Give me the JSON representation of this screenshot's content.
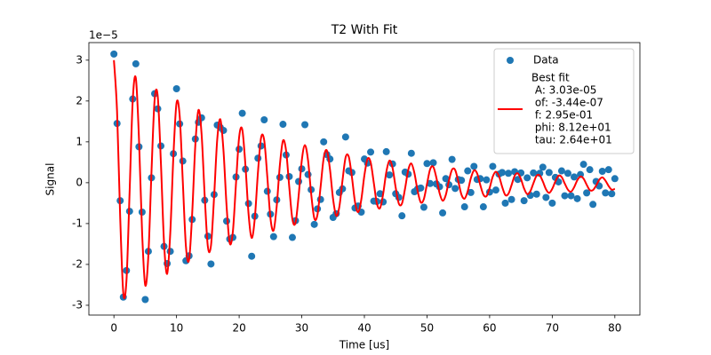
{
  "chart_data": {
    "type": "scatter",
    "title": "T2 With Fit",
    "xlabel": "Time [us]",
    "ylabel": "Signal",
    "y_offset_text": "1e−5",
    "xlim": [
      -4,
      84
    ],
    "ylim": [
      -3.24,
      3.43
    ],
    "xticks": [
      0,
      10,
      20,
      30,
      40,
      50,
      60,
      70,
      80
    ],
    "yticks": [
      -3,
      -2,
      -1,
      0,
      1,
      2,
      3
    ],
    "grid": false,
    "legend": "upper right",
    "legend_detail": [
      " A: 3.03e-05",
      " of: -3.44e-07",
      " f: 2.95e-01",
      " phi: 8.12e+01",
      " tau: 2.64e+01"
    ],
    "x": [
      0,
      0.5,
      1,
      1.5,
      2,
      2.5,
      3,
      3.5,
      4,
      4.5,
      5,
      5.5,
      6,
      6.5,
      7,
      7.5,
      8,
      8.5,
      9,
      9.5,
      10,
      10.5,
      11,
      11.5,
      12,
      12.5,
      13,
      13.5,
      14,
      14.5,
      15,
      15.5,
      16,
      16.5,
      17,
      17.5,
      18,
      18.5,
      19,
      19.5,
      20,
      20.5,
      21,
      21.5,
      22,
      22.5,
      23,
      23.5,
      24,
      24.5,
      25,
      25.5,
      26,
      26.5,
      27,
      27.5,
      28,
      28.5,
      29,
      29.5,
      30,
      30.5,
      31,
      31.5,
      32,
      32.5,
      33,
      33.5,
      34,
      34.5,
      35,
      35.5,
      36,
      36.5,
      37,
      37.5,
      38,
      38.5,
      39,
      39.5,
      40,
      40.5,
      41,
      41.5,
      42,
      42.5,
      43,
      43.5,
      44,
      44.5,
      45,
      45.5,
      46,
      46.5,
      47,
      47.5,
      48,
      48.5,
      49,
      49.5,
      50,
      50.5,
      51,
      51.5,
      52,
      52.5,
      53,
      53.5,
      54,
      54.5,
      55,
      55.5,
      56,
      56.5,
      57,
      57.5,
      58,
      58.5,
      59,
      59.5,
      60,
      60.5,
      61,
      61.5,
      62,
      62.5,
      63,
      63.5,
      64,
      64.5,
      65,
      65.5,
      66,
      66.5,
      67,
      67.5,
      68,
      68.5,
      69,
      69.5,
      70,
      70.5,
      71,
      71.5,
      72,
      72.5,
      73,
      73.5,
      74,
      74.5,
      75,
      75.5,
      76,
      76.5,
      77,
      77.5,
      78,
      78.5,
      79,
      79.5,
      80
    ],
    "series": [
      {
        "name": "Data",
        "type": "scatter",
        "color": "#1f77b4",
        "values": [
          3.15,
          1.45,
          -0.44,
          -2.8,
          -2.15,
          -0.7,
          2.05,
          2.91,
          0.88,
          -0.72,
          -2.86,
          -1.68,
          0.12,
          2.18,
          1.81,
          0.9,
          -1.56,
          -1.98,
          -1.68,
          0.71,
          2.3,
          1.44,
          0.53,
          -1.91,
          -1.79,
          -0.9,
          1.07,
          1.48,
          1.59,
          -0.43,
          -1.31,
          -1.99,
          -0.29,
          1.41,
          1.35,
          1.28,
          -0.94,
          -1.38,
          -1.34,
          0.14,
          0.82,
          1.7,
          0.33,
          -0.51,
          -1.8,
          -0.82,
          0.6,
          0.9,
          1.54,
          -0.21,
          -0.77,
          -1.32,
          -0.42,
          0.13,
          1.43,
          0.68,
          0.15,
          -1.34,
          -0.93,
          0.03,
          0.34,
          1.42,
          0.2,
          -0.17,
          -1.02,
          -0.64,
          -0.41,
          1.0,
          0.69,
          0.58,
          -0.85,
          -0.76,
          -0.24,
          -0.15,
          1.12,
          0.29,
          0.25,
          -0.62,
          -0.57,
          -0.72,
          0.58,
          0.48,
          0.75,
          -0.45,
          -0.46,
          -0.27,
          -0.47,
          0.76,
          0.19,
          0.46,
          -0.27,
          -0.36,
          -0.81,
          0.26,
          0.21,
          0.72,
          -0.22,
          -0.15,
          -0.13,
          -0.6,
          0.47,
          -0.02,
          0.49,
          -0.03,
          -0.1,
          -0.74,
          0.1,
          -0.05,
          0.57,
          -0.14,
          0.08,
          0.06,
          -0.59,
          0.29,
          -0.24,
          0.4,
          0.08,
          0.1,
          -0.59,
          0.07,
          -0.23,
          0.4,
          -0.18,
          0.21,
          0.25,
          -0.5,
          0.23,
          -0.41,
          0.27,
          0.08,
          0.24,
          -0.44,
          0.12,
          -0.31,
          0.24,
          -0.28,
          0.23,
          0.38,
          -0.36,
          0.25,
          -0.5,
          0.13,
          0.02,
          0.29,
          -0.32,
          0.23,
          -0.32,
          0.14,
          -0.39,
          0.2,
          0.45,
          -0.25,
          0.32,
          -0.53,
          0.03,
          -0.08,
          0.28,
          -0.25,
          0.32,
          -0.27,
          0.1
        ]
      },
      {
        "name": "Best fit",
        "type": "line",
        "color": "#ff0000",
        "values": [
          3.0,
          1.75,
          -0.84,
          -2.7,
          -2.4,
          -0.25,
          2.0,
          2.56,
          1.08,
          -1.22,
          -2.51,
          -1.78,
          0.27,
          2.03,
          2.11,
          0.5,
          -1.46,
          -2.23,
          -1.23,
          0.66,
          1.95,
          1.64,
          0.03,
          -1.56,
          -1.89,
          -0.75,
          0.92,
          1.78,
          1.19,
          -0.33,
          -1.56,
          -1.54,
          -0.34,
          1.06,
          1.55,
          0.78,
          -0.59,
          -1.48,
          -1.19,
          -0.01,
          1.12,
          1.3,
          0.43,
          -0.76,
          -1.35,
          -0.87,
          0.25,
          1.1,
          1.04,
          0.14,
          -0.87,
          -1.17,
          -0.57,
          0.43,
          1.03,
          0.78,
          -0.1,
          -0.89,
          -0.98,
          -0.32,
          0.54,
          0.92,
          0.55,
          -0.27,
          -0.87,
          -0.79,
          -0.11,
          0.6,
          0.79,
          0.33,
          -0.4,
          -0.81,
          -0.59,
          0.05,
          0.62,
          0.64,
          0.15,
          -0.47,
          -0.72,
          -0.42,
          0.18,
          0.58,
          0.5,
          0.0,
          -0.51,
          -0.62,
          -0.27,
          0.26,
          0.54,
          0.36,
          -0.12,
          -0.51,
          -0.51,
          -0.14,
          0.31,
          0.47,
          0.23,
          -0.2,
          -0.48,
          -0.4,
          -0.03,
          0.33,
          0.39,
          0.12,
          -0.25,
          -0.44,
          -0.3,
          0.05,
          0.32,
          0.31,
          0.03,
          -0.29,
          -0.39,
          -0.21,
          0.11,
          0.3,
          0.23,
          -0.05,
          -0.29,
          -0.33,
          -0.13,
          0.15,
          0.27,
          0.16,
          -0.1,
          -0.3,
          -0.27,
          -0.06,
          0.17,
          0.23,
          0.09,
          -0.14,
          -0.28,
          -0.21,
          -0.01,
          0.17,
          0.18,
          0.03,
          -0.16,
          -0.25,
          -0.15,
          0.03,
          0.17,
          0.14,
          -0.02,
          -0.17,
          -0.22,
          -0.11,
          0.06,
          0.15,
          0.1,
          -0.05,
          -0.18,
          -0.18,
          -0.07,
          0.07,
          0.13,
          0.05,
          -0.08,
          -0.17,
          -0.15
        ]
      }
    ]
  }
}
